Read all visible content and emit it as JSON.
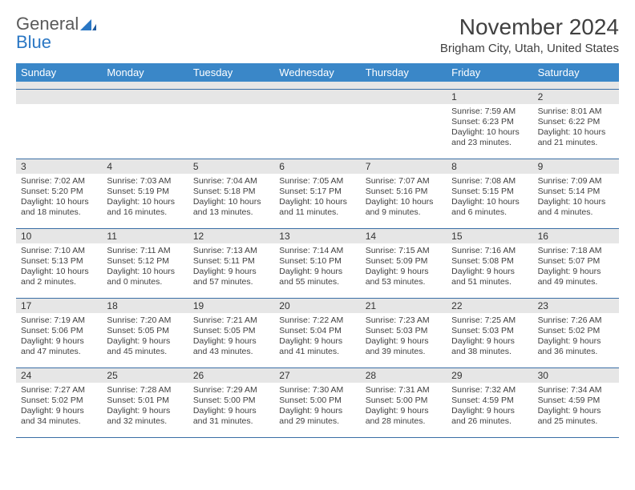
{
  "logo": {
    "word1": "General",
    "word2": "Blue"
  },
  "title": "November 2024",
  "location": "Brigham City, Utah, United States",
  "colors": {
    "header_bg": "#3a87c8",
    "header_text": "#ffffff",
    "spacer_bg": "#e6e6e6",
    "week_border": "#3a6ea5",
    "dnum_bg": "#e6e6e6",
    "body_text": "#404040",
    "logo_gray": "#5a5a5a",
    "logo_blue": "#2a77c4"
  },
  "day_names": [
    "Sunday",
    "Monday",
    "Tuesday",
    "Wednesday",
    "Thursday",
    "Friday",
    "Saturday"
  ],
  "weeks": [
    [
      null,
      null,
      null,
      null,
      null,
      {
        "n": "1",
        "sunrise": "Sunrise: 7:59 AM",
        "sunset": "Sunset: 6:23 PM",
        "dl1": "Daylight: 10 hours",
        "dl2": "and 23 minutes."
      },
      {
        "n": "2",
        "sunrise": "Sunrise: 8:01 AM",
        "sunset": "Sunset: 6:22 PM",
        "dl1": "Daylight: 10 hours",
        "dl2": "and 21 minutes."
      }
    ],
    [
      {
        "n": "3",
        "sunrise": "Sunrise: 7:02 AM",
        "sunset": "Sunset: 5:20 PM",
        "dl1": "Daylight: 10 hours",
        "dl2": "and 18 minutes."
      },
      {
        "n": "4",
        "sunrise": "Sunrise: 7:03 AM",
        "sunset": "Sunset: 5:19 PM",
        "dl1": "Daylight: 10 hours",
        "dl2": "and 16 minutes."
      },
      {
        "n": "5",
        "sunrise": "Sunrise: 7:04 AM",
        "sunset": "Sunset: 5:18 PM",
        "dl1": "Daylight: 10 hours",
        "dl2": "and 13 minutes."
      },
      {
        "n": "6",
        "sunrise": "Sunrise: 7:05 AM",
        "sunset": "Sunset: 5:17 PM",
        "dl1": "Daylight: 10 hours",
        "dl2": "and 11 minutes."
      },
      {
        "n": "7",
        "sunrise": "Sunrise: 7:07 AM",
        "sunset": "Sunset: 5:16 PM",
        "dl1": "Daylight: 10 hours",
        "dl2": "and 9 minutes."
      },
      {
        "n": "8",
        "sunrise": "Sunrise: 7:08 AM",
        "sunset": "Sunset: 5:15 PM",
        "dl1": "Daylight: 10 hours",
        "dl2": "and 6 minutes."
      },
      {
        "n": "9",
        "sunrise": "Sunrise: 7:09 AM",
        "sunset": "Sunset: 5:14 PM",
        "dl1": "Daylight: 10 hours",
        "dl2": "and 4 minutes."
      }
    ],
    [
      {
        "n": "10",
        "sunrise": "Sunrise: 7:10 AM",
        "sunset": "Sunset: 5:13 PM",
        "dl1": "Daylight: 10 hours",
        "dl2": "and 2 minutes."
      },
      {
        "n": "11",
        "sunrise": "Sunrise: 7:11 AM",
        "sunset": "Sunset: 5:12 PM",
        "dl1": "Daylight: 10 hours",
        "dl2": "and 0 minutes."
      },
      {
        "n": "12",
        "sunrise": "Sunrise: 7:13 AM",
        "sunset": "Sunset: 5:11 PM",
        "dl1": "Daylight: 9 hours",
        "dl2": "and 57 minutes."
      },
      {
        "n": "13",
        "sunrise": "Sunrise: 7:14 AM",
        "sunset": "Sunset: 5:10 PM",
        "dl1": "Daylight: 9 hours",
        "dl2": "and 55 minutes."
      },
      {
        "n": "14",
        "sunrise": "Sunrise: 7:15 AM",
        "sunset": "Sunset: 5:09 PM",
        "dl1": "Daylight: 9 hours",
        "dl2": "and 53 minutes."
      },
      {
        "n": "15",
        "sunrise": "Sunrise: 7:16 AM",
        "sunset": "Sunset: 5:08 PM",
        "dl1": "Daylight: 9 hours",
        "dl2": "and 51 minutes."
      },
      {
        "n": "16",
        "sunrise": "Sunrise: 7:18 AM",
        "sunset": "Sunset: 5:07 PM",
        "dl1": "Daylight: 9 hours",
        "dl2": "and 49 minutes."
      }
    ],
    [
      {
        "n": "17",
        "sunrise": "Sunrise: 7:19 AM",
        "sunset": "Sunset: 5:06 PM",
        "dl1": "Daylight: 9 hours",
        "dl2": "and 47 minutes."
      },
      {
        "n": "18",
        "sunrise": "Sunrise: 7:20 AM",
        "sunset": "Sunset: 5:05 PM",
        "dl1": "Daylight: 9 hours",
        "dl2": "and 45 minutes."
      },
      {
        "n": "19",
        "sunrise": "Sunrise: 7:21 AM",
        "sunset": "Sunset: 5:05 PM",
        "dl1": "Daylight: 9 hours",
        "dl2": "and 43 minutes."
      },
      {
        "n": "20",
        "sunrise": "Sunrise: 7:22 AM",
        "sunset": "Sunset: 5:04 PM",
        "dl1": "Daylight: 9 hours",
        "dl2": "and 41 minutes."
      },
      {
        "n": "21",
        "sunrise": "Sunrise: 7:23 AM",
        "sunset": "Sunset: 5:03 PM",
        "dl1": "Daylight: 9 hours",
        "dl2": "and 39 minutes."
      },
      {
        "n": "22",
        "sunrise": "Sunrise: 7:25 AM",
        "sunset": "Sunset: 5:03 PM",
        "dl1": "Daylight: 9 hours",
        "dl2": "and 38 minutes."
      },
      {
        "n": "23",
        "sunrise": "Sunrise: 7:26 AM",
        "sunset": "Sunset: 5:02 PM",
        "dl1": "Daylight: 9 hours",
        "dl2": "and 36 minutes."
      }
    ],
    [
      {
        "n": "24",
        "sunrise": "Sunrise: 7:27 AM",
        "sunset": "Sunset: 5:02 PM",
        "dl1": "Daylight: 9 hours",
        "dl2": "and 34 minutes."
      },
      {
        "n": "25",
        "sunrise": "Sunrise: 7:28 AM",
        "sunset": "Sunset: 5:01 PM",
        "dl1": "Daylight: 9 hours",
        "dl2": "and 32 minutes."
      },
      {
        "n": "26",
        "sunrise": "Sunrise: 7:29 AM",
        "sunset": "Sunset: 5:00 PM",
        "dl1": "Daylight: 9 hours",
        "dl2": "and 31 minutes."
      },
      {
        "n": "27",
        "sunrise": "Sunrise: 7:30 AM",
        "sunset": "Sunset: 5:00 PM",
        "dl1": "Daylight: 9 hours",
        "dl2": "and 29 minutes."
      },
      {
        "n": "28",
        "sunrise": "Sunrise: 7:31 AM",
        "sunset": "Sunset: 5:00 PM",
        "dl1": "Daylight: 9 hours",
        "dl2": "and 28 minutes."
      },
      {
        "n": "29",
        "sunrise": "Sunrise: 7:32 AM",
        "sunset": "Sunset: 4:59 PM",
        "dl1": "Daylight: 9 hours",
        "dl2": "and 26 minutes."
      },
      {
        "n": "30",
        "sunrise": "Sunrise: 7:34 AM",
        "sunset": "Sunset: 4:59 PM",
        "dl1": "Daylight: 9 hours",
        "dl2": "and 25 minutes."
      }
    ]
  ]
}
